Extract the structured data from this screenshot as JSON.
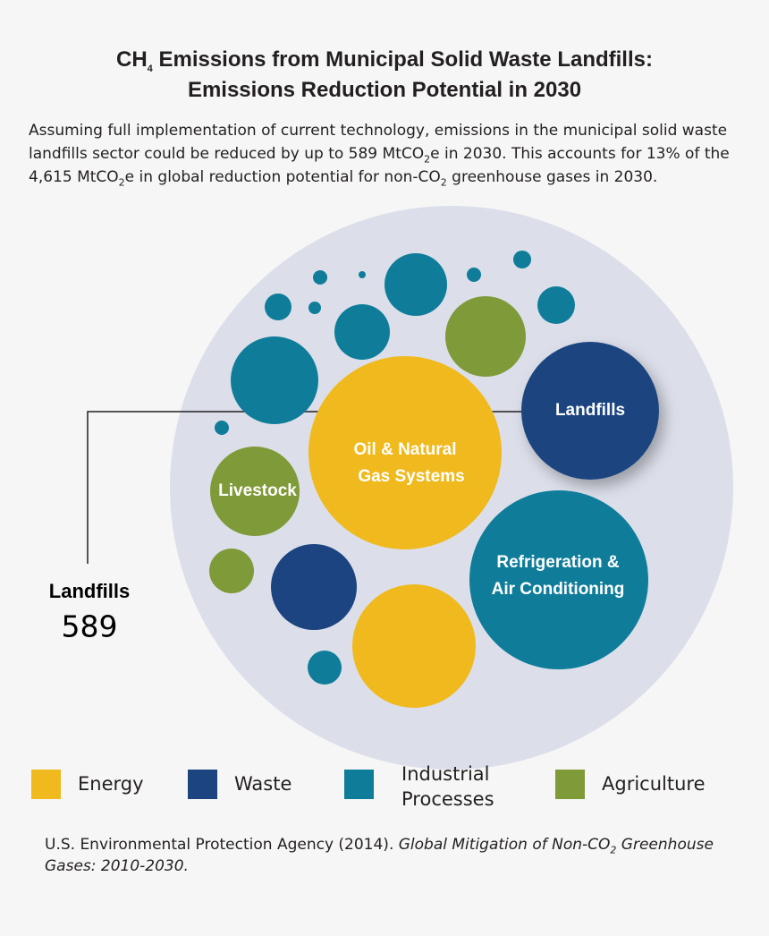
{
  "title": {
    "line1": [
      "CH",
      "4",
      " Emissions from Municipal Solid Waste Landfills:"
    ],
    "line2": "Emissions Reduction Potential in 2030"
  },
  "description": [
    "Assuming full implementation of current technology, emissions in the municipal solid waste landfills sector could be reduced by up to 589 MtCO",
    "2",
    "e in 2030. This accounts for 13% of the 4,615 MtCO",
    "2",
    "e in global reduction potential for non-CO",
    "2",
    " greenhouse gases in 2030."
  ],
  "bubble_labels": {
    "landfills": "Landfills",
    "oil_gas": [
      "Oil & Natural",
      "Gas Systems"
    ],
    "livestock": "Livestock",
    "refrigeration": [
      "Refrigeration &",
      "Air Conditioning"
    ]
  },
  "callout": {
    "label": "Landfills",
    "value": 589
  },
  "legend": [
    {
      "name": "Energy",
      "color": "#f0b91d"
    },
    {
      "name": "Waste",
      "color": "#1c4480"
    },
    {
      "name": "Industrial Processes",
      "color": "#0f7d9a"
    },
    {
      "name": "Agriculture",
      "color": "#7f9a38"
    }
  ],
  "source": {
    "text": "U.S. Environmental Protection Agency (2014). ",
    "title": [
      "Global Mitigation of Non-CO",
      "2",
      " Greenhouse Gases: 2010-2030."
    ]
  }
}
